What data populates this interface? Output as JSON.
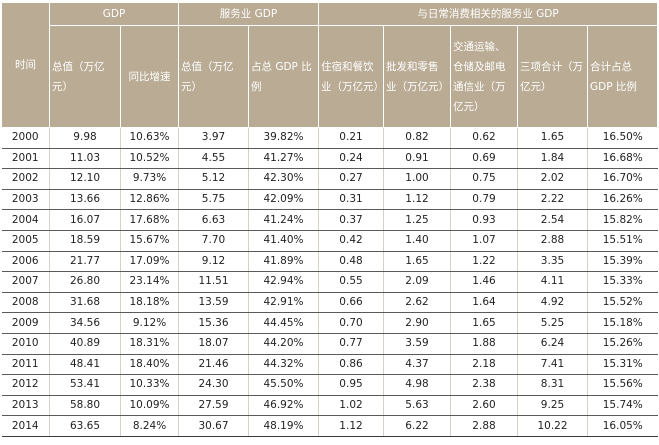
{
  "header": {
    "time": "时间",
    "groups": [
      "GDP",
      "服务业 GDP",
      "与日常消费相关的服务业 GDP"
    ],
    "cols": [
      "总值（万亿元）",
      "同比增速",
      "总值（万亿元）",
      "占总 GDP 比例",
      "住宿和餐饮业（万亿元）",
      "批发和零售业（万亿元）",
      "交通运输、仓储及邮电通信业（万亿元）",
      "三项合计（万亿元）",
      "合计占总 GDP 比例"
    ]
  },
  "rows": [
    [
      "2000",
      "9.98",
      "10.63%",
      "3.97",
      "39.82%",
      "0.21",
      "0.82",
      "0.62",
      "1.65",
      "16.50%"
    ],
    [
      "2001",
      "11.03",
      "10.52%",
      "4.55",
      "41.27%",
      "0.24",
      "0.91",
      "0.69",
      "1.84",
      "16.68%"
    ],
    [
      "2002",
      "12.10",
      "9.73%",
      "5.12",
      "42.30%",
      "0.27",
      "1.00",
      "0.75",
      "2.02",
      "16.70%"
    ],
    [
      "2003",
      "13.66",
      "12.86%",
      "5.75",
      "42.09%",
      "0.31",
      "1.12",
      "0.79",
      "2.22",
      "16.26%"
    ],
    [
      "2004",
      "16.07",
      "17.68%",
      "6.63",
      "41.24%",
      "0.37",
      "1.25",
      "0.93",
      "2.54",
      "15.82%"
    ],
    [
      "2005",
      "18.59",
      "15.67%",
      "7.70",
      "41.40%",
      "0.42",
      "1.40",
      "1.07",
      "2.88",
      "15.51%"
    ],
    [
      "2006",
      "21.77",
      "17.09%",
      "9.12",
      "41.89%",
      "0.48",
      "1.65",
      "1.22",
      "3.35",
      "15.39%"
    ],
    [
      "2007",
      "26.80",
      "23.14%",
      "11.51",
      "42.94%",
      "0.55",
      "2.09",
      "1.46",
      "4.11",
      "15.33%"
    ],
    [
      "2008",
      "31.68",
      "18.18%",
      "13.59",
      "42.91%",
      "0.66",
      "2.62",
      "1.64",
      "4.92",
      "15.52%"
    ],
    [
      "2009",
      "34.56",
      "9.12%",
      "15.36",
      "44.45%",
      "0.70",
      "2.90",
      "1.65",
      "5.25",
      "15.18%"
    ],
    [
      "2010",
      "40.89",
      "18.31%",
      "18.07",
      "44.20%",
      "0.77",
      "3.59",
      "1.88",
      "6.24",
      "15.26%"
    ],
    [
      "2011",
      "48.41",
      "18.40%",
      "21.46",
      "44.32%",
      "0.86",
      "4.37",
      "2.18",
      "7.41",
      "15.31%"
    ],
    [
      "2012",
      "53.41",
      "10.33%",
      "24.30",
      "45.50%",
      "0.95",
      "4.98",
      "2.38",
      "8.31",
      "15.56%"
    ],
    [
      "2013",
      "58.80",
      "10.09%",
      "27.59",
      "46.92%",
      "1.02",
      "5.63",
      "2.60",
      "9.25",
      "15.74%"
    ],
    [
      "2014",
      "63.65",
      "8.24%",
      "30.67",
      "48.19%",
      "1.12",
      "6.22",
      "2.88",
      "10.22",
      "16.05%"
    ]
  ]
}
